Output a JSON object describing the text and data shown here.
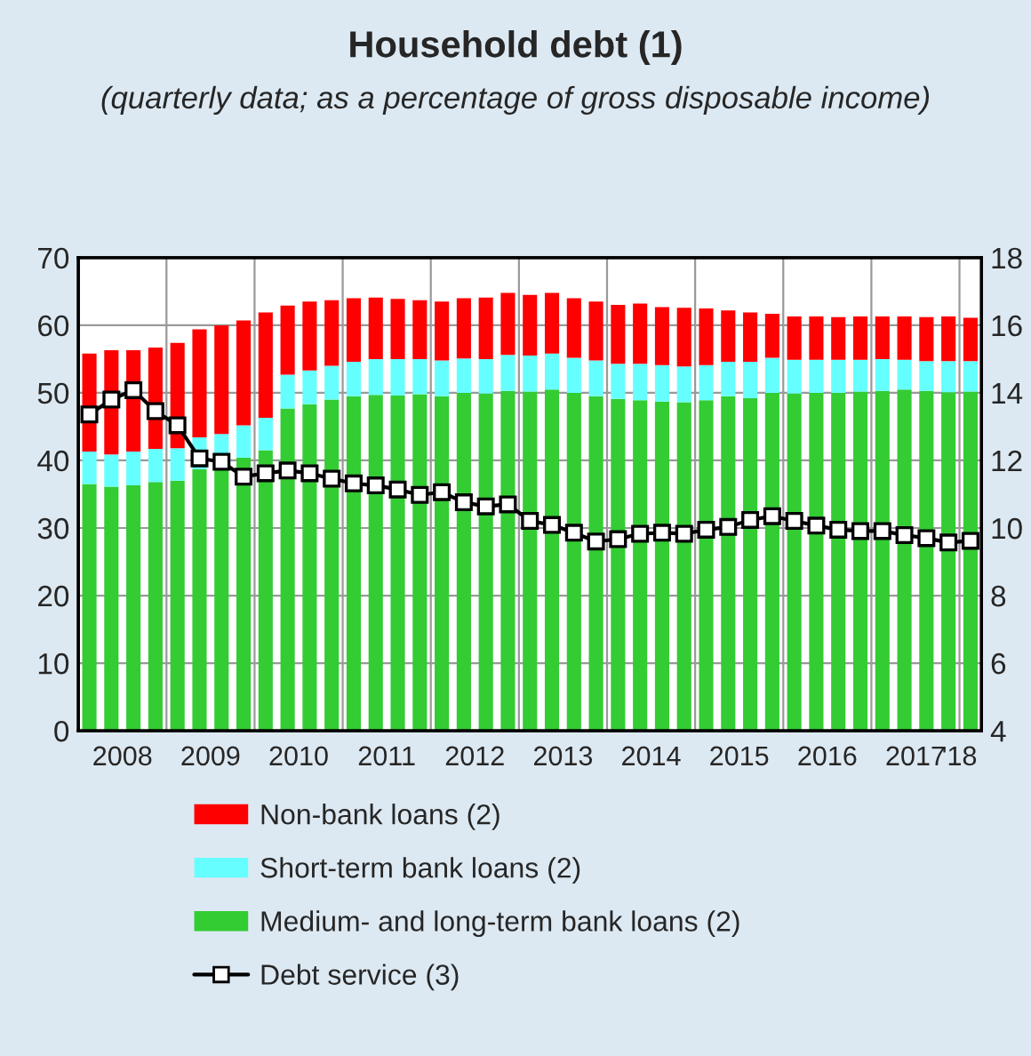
{
  "chart_data": {
    "type": "bar",
    "title": "Household debt (1)",
    "subtitle": "(quarterly data; as a percentage of gross disposable income)",
    "x": [
      2008.125,
      2008.375,
      2008.625,
      2008.875,
      2009.125,
      2009.375,
      2009.625,
      2009.875,
      2010.125,
      2010.375,
      2010.625,
      2010.875,
      2011.125,
      2011.375,
      2011.625,
      2011.875,
      2012.125,
      2012.375,
      2012.625,
      2012.875,
      2013.125,
      2013.375,
      2013.625,
      2013.875,
      2014.125,
      2014.375,
      2014.625,
      2014.875,
      2015.125,
      2015.375,
      2015.625,
      2015.875,
      2016.125,
      2016.375,
      2016.625,
      2016.875,
      2017.125,
      2017.375,
      2017.625,
      2017.875,
      2018.125
    ],
    "stacked": true,
    "series": [
      {
        "name": "Medium- and long-term bank loans (2)",
        "color": "#33cc33",
        "values": [
          36.5,
          36.1,
          36.3,
          36.8,
          37.0,
          38.7,
          39.4,
          40.4,
          41.5,
          47.7,
          48.3,
          49.0,
          49.5,
          49.7,
          49.6,
          49.8,
          49.5,
          50.0,
          49.9,
          50.3,
          50.2,
          50.5,
          50.0,
          49.5,
          49.1,
          48.9,
          48.7,
          48.6,
          48.9,
          49.5,
          49.2,
          50.0,
          49.9,
          50.0,
          50.0,
          50.2,
          50.3,
          50.5,
          50.3,
          50.1,
          50.2
        ]
      },
      {
        "name": "Short-term bank loans (2)",
        "color": "#66ffff",
        "values": [
          4.8,
          4.8,
          5.0,
          4.9,
          4.8,
          4.7,
          4.5,
          4.8,
          4.8,
          5.0,
          5.0,
          5.0,
          5.1,
          5.3,
          5.4,
          5.2,
          5.3,
          5.1,
          5.1,
          5.3,
          5.3,
          5.3,
          5.2,
          5.3,
          5.2,
          5.4,
          5.4,
          5.3,
          5.2,
          5.1,
          5.4,
          5.2,
          5.0,
          4.9,
          4.9,
          4.7,
          4.7,
          4.4,
          4.4,
          4.6,
          4.5
        ]
      },
      {
        "name": "Non-bank loans (2)",
        "color": "#ff0000",
        "values": [
          14.5,
          15.4,
          15.0,
          15.0,
          15.6,
          16.0,
          16.1,
          15.5,
          15.6,
          10.2,
          10.2,
          9.7,
          9.4,
          9.1,
          8.9,
          8.7,
          8.7,
          8.9,
          9.1,
          9.2,
          9.0,
          9.0,
          8.8,
          8.7,
          8.7,
          8.9,
          8.6,
          8.7,
          8.4,
          7.6,
          7.3,
          6.5,
          6.4,
          6.4,
          6.3,
          6.4,
          6.3,
          6.4,
          6.5,
          6.6,
          6.4
        ]
      },
      {
        "name": "Debt service (3)",
        "type": "line",
        "axis": "y2",
        "color": "#000000",
        "marker": "square",
        "line_style": "solid",
        "values": [
          13.36,
          13.8,
          14.08,
          13.46,
          13.04,
          12.06,
          11.96,
          11.52,
          11.62,
          11.7,
          11.62,
          11.46,
          11.32,
          11.26,
          11.14,
          10.98,
          11.06,
          10.76,
          10.64,
          10.7,
          10.21,
          10.09,
          9.86,
          9.6,
          9.67,
          9.83,
          9.86,
          9.83,
          9.95,
          10.03,
          10.24,
          10.35,
          10.21,
          10.07,
          9.95,
          9.91,
          9.91,
          9.79,
          9.7,
          9.57,
          9.62
        ]
      }
    ],
    "xlim": [
      2008,
      2018.25
    ],
    "xticks": [
      {
        "value": 2008.5,
        "label": "2008"
      },
      {
        "value": 2009,
        "label": null
      },
      {
        "value": 2009.5,
        "label": "2009"
      },
      {
        "value": 2010,
        "label": null
      },
      {
        "value": 2010.5,
        "label": "2010"
      },
      {
        "value": 2011,
        "label": null
      },
      {
        "value": 2011.5,
        "label": "2011"
      },
      {
        "value": 2012,
        "label": null
      },
      {
        "value": 2012.5,
        "label": "2012"
      },
      {
        "value": 2013,
        "label": null
      },
      {
        "value": 2013.5,
        "label": "2013"
      },
      {
        "value": 2014,
        "label": null
      },
      {
        "value": 2014.5,
        "label": "2014"
      },
      {
        "value": 2015,
        "label": null
      },
      {
        "value": 2015.5,
        "label": "2015"
      },
      {
        "value": 2016,
        "label": null
      },
      {
        "value": 2016.5,
        "label": "2016"
      },
      {
        "value": 2017,
        "label": null
      },
      {
        "value": 2017.5,
        "label": "2017"
      },
      {
        "value": 2018,
        "label": "'18"
      }
    ],
    "ylim": [
      0,
      70
    ],
    "yticks": [
      0,
      10,
      20,
      30,
      40,
      50,
      60,
      70
    ],
    "y2lim": [
      4,
      18
    ],
    "y2ticks": [
      4,
      6,
      8,
      10,
      12,
      14,
      16,
      18
    ],
    "grid": true,
    "legend": "bottom"
  }
}
